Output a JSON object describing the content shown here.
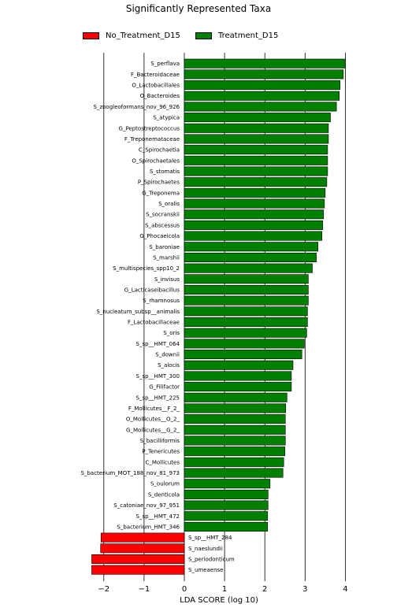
{
  "chart_data": {
    "type": "bar",
    "orientation": "horizontal",
    "title": "Significantly Represented Taxa",
    "xlabel": "LDA SCORE (log 10)",
    "xlim": [
      -2.3,
      4.15
    ],
    "xticks": [
      -2,
      -1,
      0,
      1,
      2,
      3,
      4
    ],
    "grid": "vertical lines at each x tick",
    "legend_position": "top",
    "legend": [
      {
        "name": "No_Treatment_D15",
        "color": "#ff0000"
      },
      {
        "name": "Treatment_D15",
        "color": "#008000"
      }
    ],
    "series": [
      {
        "name": "Treatment_D15",
        "color": "#008000",
        "categories": [
          "S_perflava",
          "F_Bacteroidaceae",
          "O_Lactobacillales",
          "O_Bacteroides",
          "S_zoogleoformans_nov_96_926",
          "S_atypica",
          "G_Peptostreptococcus",
          "F_Treponemataceae",
          "C_Spirochaetia",
          "O_Spirochaetales",
          "S_stomatis",
          "P_Spirochaetes",
          "G_Treponema",
          "S_oralis",
          "S_socranskii",
          "S_abscessus",
          "G_Phocaeicola",
          "S_baroniae",
          "S_marshii",
          "S_multispecies_spp10_2",
          "S_invisus",
          "G_Lacticaseibacillus",
          "S_rhamnosus",
          "S_nucleatum_subsp__animalis",
          "F_Lactobacillaceae",
          "S_oris",
          "S_sp__HMT_064",
          "S_downii",
          "S_alocis",
          "S_sp__HMT_300",
          "G_Filifactor",
          "S_sp__HMT_225",
          "F_Mollicutes__F_2_",
          "O_Mollicutes__O_2_",
          "G_Mollicutes__G_2_",
          "S_bacilliformis",
          "P_Tenericutes",
          "C_Mollicutes",
          "S_bacterium_MOT_188_nov_81_973",
          "S_oulorum",
          "S_denticola",
          "S_catoniae_nov_97_951",
          "S_sp__HMT_472",
          "S_bacterium_HMT_346"
        ],
        "values": [
          4.0,
          3.95,
          3.87,
          3.85,
          3.78,
          3.63,
          3.58,
          3.58,
          3.56,
          3.56,
          3.56,
          3.54,
          3.5,
          3.48,
          3.46,
          3.44,
          3.42,
          3.32,
          3.28,
          3.18,
          3.08,
          3.08,
          3.08,
          3.06,
          3.06,
          3.04,
          2.98,
          2.92,
          2.7,
          2.66,
          2.66,
          2.55,
          2.52,
          2.51,
          2.51,
          2.51,
          2.5,
          2.47,
          2.45,
          2.13,
          2.08,
          2.08,
          2.07,
          2.07
        ]
      },
      {
        "name": "No_Treatment_D15",
        "color": "#ff0000",
        "categories": [
          "S_sp__HMT_284",
          "S_naeslundii",
          "S_periodonticum",
          "S_umeaense"
        ],
        "values": [
          -2.07,
          -2.08,
          -2.3,
          -2.3
        ]
      }
    ]
  }
}
